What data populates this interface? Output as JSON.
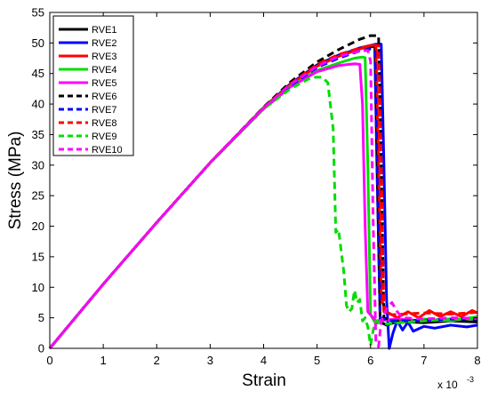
{
  "chart_data": {
    "type": "line",
    "title": "",
    "xlabel": "Strain",
    "ylabel": "Stress (MPa)",
    "x_multiplier_label": "x 10",
    "x_multiplier_exponent": "-3",
    "xlim": [
      0,
      8
    ],
    "ylim": [
      0,
      55
    ],
    "x_ticks": [
      "0",
      "1",
      "2",
      "3",
      "4",
      "5",
      "6",
      "7",
      "8"
    ],
    "y_ticks": [
      "0",
      "5",
      "10",
      "15",
      "20",
      "25",
      "30",
      "35",
      "40",
      "45",
      "50",
      "55"
    ],
    "x_tick_values": [
      0,
      1,
      2,
      3,
      4,
      5,
      6,
      7,
      8
    ],
    "y_tick_values": [
      0,
      5,
      10,
      15,
      20,
      25,
      30,
      35,
      40,
      45,
      50,
      55
    ],
    "grid": false,
    "legend_position": "top-left",
    "series": [
      {
        "name": "RVE1",
        "color": "#000000",
        "dash": "solid",
        "points": [
          [
            0,
            0
          ],
          [
            1,
            10.5
          ],
          [
            2,
            20.6
          ],
          [
            3,
            30.4
          ],
          [
            4,
            39.4
          ],
          [
            4.5,
            43.3
          ],
          [
            5,
            46.4
          ],
          [
            5.4,
            48.0
          ],
          [
            5.8,
            49.1
          ],
          [
            6.0,
            49.4
          ],
          [
            6.08,
            49.4
          ],
          [
            6.12,
            30.0
          ],
          [
            6.18,
            4.3
          ],
          [
            6.3,
            3.8
          ],
          [
            6.5,
            4.4
          ],
          [
            7,
            4.2
          ],
          [
            7.5,
            4.5
          ],
          [
            8,
            4.3
          ]
        ]
      },
      {
        "name": "RVE2",
        "color": "#0000ff",
        "dash": "solid",
        "points": [
          [
            0,
            0
          ],
          [
            1,
            10.5
          ],
          [
            2,
            20.6
          ],
          [
            3,
            30.4
          ],
          [
            4,
            39.4
          ],
          [
            4.5,
            43.3
          ],
          [
            5,
            46.3
          ],
          [
            5.4,
            47.9
          ],
          [
            5.8,
            49.2
          ],
          [
            6.1,
            49.8
          ],
          [
            6.2,
            49.8
          ],
          [
            6.25,
            30.0
          ],
          [
            6.3,
            8.0
          ],
          [
            6.35,
            0
          ],
          [
            6.42,
            2.5
          ],
          [
            6.5,
            4.5
          ],
          [
            6.6,
            3.0
          ],
          [
            6.7,
            4.3
          ],
          [
            6.8,
            2.8
          ],
          [
            7,
            3.6
          ],
          [
            7.2,
            3.3
          ],
          [
            7.5,
            3.8
          ],
          [
            7.8,
            3.5
          ],
          [
            8,
            3.8
          ]
        ]
      },
      {
        "name": "RVE3",
        "color": "#ff0000",
        "dash": "solid",
        "points": [
          [
            0,
            0
          ],
          [
            1,
            10.5
          ],
          [
            2,
            20.6
          ],
          [
            3,
            30.4
          ],
          [
            4,
            39.4
          ],
          [
            4.5,
            43.2
          ],
          [
            5,
            46.2
          ],
          [
            5.4,
            47.8
          ],
          [
            5.8,
            49.0
          ],
          [
            6.0,
            49.6
          ],
          [
            6.1,
            49.6
          ],
          [
            6.15,
            30.0
          ],
          [
            6.2,
            8.0
          ],
          [
            6.3,
            6.0
          ],
          [
            6.5,
            5.0
          ],
          [
            6.7,
            6.0
          ],
          [
            6.9,
            5.0
          ],
          [
            7.1,
            6.2
          ],
          [
            7.3,
            5.2
          ],
          [
            7.5,
            6.0
          ],
          [
            7.7,
            5.2
          ],
          [
            7.9,
            6.2
          ],
          [
            8,
            5.8
          ]
        ]
      },
      {
        "name": "RVE4",
        "color": "#00dd00",
        "dash": "solid",
        "points": [
          [
            0,
            0
          ],
          [
            1,
            10.5
          ],
          [
            2,
            20.6
          ],
          [
            3,
            30.4
          ],
          [
            4,
            39.3
          ],
          [
            4.5,
            42.9
          ],
          [
            5,
            45.5
          ],
          [
            5.4,
            46.7
          ],
          [
            5.7,
            47.5
          ],
          [
            5.85,
            47.7
          ],
          [
            5.9,
            47.6
          ],
          [
            5.95,
            30.0
          ],
          [
            6.0,
            5.5
          ],
          [
            6.1,
            4.0
          ],
          [
            6.3,
            4.8
          ],
          [
            6.5,
            4.2
          ],
          [
            7,
            4.8
          ],
          [
            7.5,
            4.5
          ],
          [
            8,
            5.2
          ]
        ]
      },
      {
        "name": "RVE5",
        "color": "#ff00ff",
        "dash": "solid",
        "points": [
          [
            0,
            0
          ],
          [
            1,
            10.5
          ],
          [
            2,
            20.6
          ],
          [
            3,
            30.4
          ],
          [
            4,
            39.2
          ],
          [
            4.5,
            42.8
          ],
          [
            5,
            45.3
          ],
          [
            5.4,
            46.3
          ],
          [
            5.7,
            46.6
          ],
          [
            5.8,
            46.5
          ],
          [
            5.85,
            40.0
          ],
          [
            5.9,
            20.0
          ],
          [
            5.95,
            6.0
          ],
          [
            6.1,
            4.5
          ],
          [
            6.5,
            4.8
          ],
          [
            7,
            4.5
          ],
          [
            7.5,
            4.8
          ],
          [
            8,
            4.7
          ]
        ]
      },
      {
        "name": "RVE6",
        "color": "#000000",
        "dash": "dashed",
        "points": [
          [
            0,
            0
          ],
          [
            1,
            10.5
          ],
          [
            2,
            20.6
          ],
          [
            3,
            30.4
          ],
          [
            4,
            39.5
          ],
          [
            4.5,
            43.6
          ],
          [
            5,
            46.9
          ],
          [
            5.4,
            48.9
          ],
          [
            5.8,
            50.6
          ],
          [
            6.0,
            51.2
          ],
          [
            6.15,
            51.2
          ],
          [
            6.2,
            30.0
          ],
          [
            6.25,
            5.0
          ],
          [
            6.4,
            4.5
          ],
          [
            7,
            4.6
          ],
          [
            7.5,
            4.8
          ],
          [
            8,
            4.6
          ]
        ]
      },
      {
        "name": "RVE7",
        "color": "#0000ff",
        "dash": "dashed",
        "points": [
          [
            0,
            0
          ],
          [
            1,
            10.5
          ],
          [
            2,
            20.6
          ],
          [
            3,
            30.4
          ],
          [
            4,
            39.3
          ],
          [
            4.5,
            43.0
          ],
          [
            5,
            46.0
          ],
          [
            5.4,
            47.5
          ],
          [
            5.8,
            48.7
          ],
          [
            6.0,
            49.0
          ],
          [
            6.08,
            48.8
          ],
          [
            6.12,
            30.0
          ],
          [
            6.18,
            5.0
          ],
          [
            6.4,
            4.5
          ],
          [
            7,
            4.6
          ],
          [
            7.5,
            4.8
          ],
          [
            8,
            4.8
          ]
        ]
      },
      {
        "name": "RVE8",
        "color": "#ff0000",
        "dash": "dashed",
        "points": [
          [
            0,
            0
          ],
          [
            1,
            10.5
          ],
          [
            2,
            20.6
          ],
          [
            3,
            30.4
          ],
          [
            4,
            39.4
          ],
          [
            4.5,
            43.3
          ],
          [
            5,
            46.5
          ],
          [
            5.4,
            48.1
          ],
          [
            5.8,
            49.2
          ],
          [
            6.0,
            49.6
          ],
          [
            6.15,
            49.6
          ],
          [
            6.2,
            30.0
          ],
          [
            6.25,
            6.0
          ],
          [
            6.4,
            5.5
          ],
          [
            7,
            5.8
          ],
          [
            7.5,
            5.6
          ],
          [
            8,
            5.9
          ]
        ]
      },
      {
        "name": "RVE9",
        "color": "#00dd00",
        "dash": "dashed",
        "points": [
          [
            0,
            0
          ],
          [
            1,
            10.5
          ],
          [
            2,
            20.6
          ],
          [
            3,
            30.4
          ],
          [
            4,
            39.2
          ],
          [
            4.5,
            42.5
          ],
          [
            4.9,
            44.4
          ],
          [
            5.1,
            44.4
          ],
          [
            5.2,
            43.5
          ],
          [
            5.3,
            36.0
          ],
          [
            5.35,
            19.0
          ],
          [
            5.4,
            19.5
          ],
          [
            5.45,
            16.0
          ],
          [
            5.5,
            12.5
          ],
          [
            5.55,
            7.0
          ],
          [
            5.6,
            6.0
          ],
          [
            5.65,
            6.5
          ],
          [
            5.7,
            9.5
          ],
          [
            5.75,
            7.5
          ],
          [
            5.8,
            8.0
          ],
          [
            5.85,
            4.5
          ],
          [
            5.9,
            5.0
          ],
          [
            5.95,
            3.5
          ],
          [
            6.0,
            0.5
          ],
          [
            6.05,
            3.0
          ],
          [
            6.1,
            4.5
          ],
          [
            6.3,
            4.0
          ],
          [
            7,
            4.5
          ],
          [
            7.5,
            4.8
          ],
          [
            8,
            4.8
          ]
        ]
      },
      {
        "name": "RVE10",
        "color": "#ff00ff",
        "dash": "dashed",
        "points": [
          [
            0,
            0
          ],
          [
            1,
            10.5
          ],
          [
            2,
            20.6
          ],
          [
            3,
            30.4
          ],
          [
            4,
            39.4
          ],
          [
            4.5,
            43.2
          ],
          [
            5,
            46.2
          ],
          [
            5.4,
            47.8
          ],
          [
            5.8,
            48.7
          ],
          [
            5.95,
            48.8
          ],
          [
            6.0,
            47.0
          ],
          [
            6.05,
            20.0
          ],
          [
            6.1,
            1.0
          ],
          [
            6.15,
            0.3
          ],
          [
            6.2,
            4.5
          ],
          [
            6.3,
            6.5
          ],
          [
            6.4,
            7.5
          ],
          [
            6.5,
            6.0
          ],
          [
            6.6,
            5.0
          ],
          [
            7,
            4.8
          ],
          [
            7.5,
            5.0
          ],
          [
            8,
            4.9
          ]
        ]
      }
    ]
  }
}
